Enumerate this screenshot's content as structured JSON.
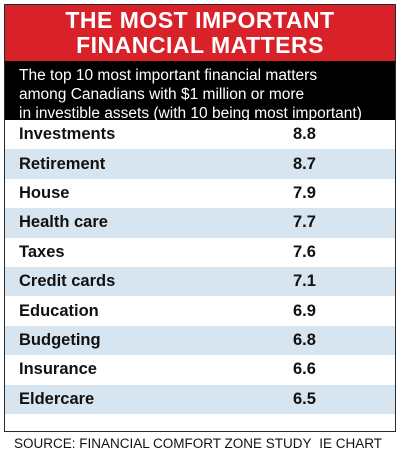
{
  "title": [
    "THE MOST IMPORTANT",
    "FINANCIAL MATTERS"
  ],
  "subtitle": [
    "The top 10 most important financial matters",
    "among Canadians with $1 million or more",
    "in investible assets (with 10 being most important)"
  ],
  "colors": {
    "title_bg": "#d92129",
    "subtitle_bg": "#000000",
    "row_shade": "#d7e5f0"
  },
  "chart_data": {
    "type": "table",
    "title": "THE MOST IMPORTANT FINANCIAL MATTERS",
    "subtitle": "The top 10 most important financial matters among Canadians with $1 million or more in investible assets (with 10 being most important)",
    "categories": [
      "Investments",
      "Retirement",
      "House",
      "Health care",
      "Taxes",
      "Credit cards",
      "Education",
      "Budgeting",
      "Insurance",
      "Eldercare"
    ],
    "values": [
      8.8,
      8.7,
      7.9,
      7.7,
      7.6,
      7.1,
      6.9,
      6.8,
      6.6,
      6.5
    ],
    "value_labels": [
      "8.8",
      "8.7",
      "7.9",
      "7.7",
      "7.6",
      "7.1",
      "6.9",
      "6.8",
      "6.6",
      "6.5"
    ]
  },
  "footer": {
    "source": "SOURCE: FINANCIAL COMFORT ZONE STUDY",
    "credit": "IE CHART"
  }
}
